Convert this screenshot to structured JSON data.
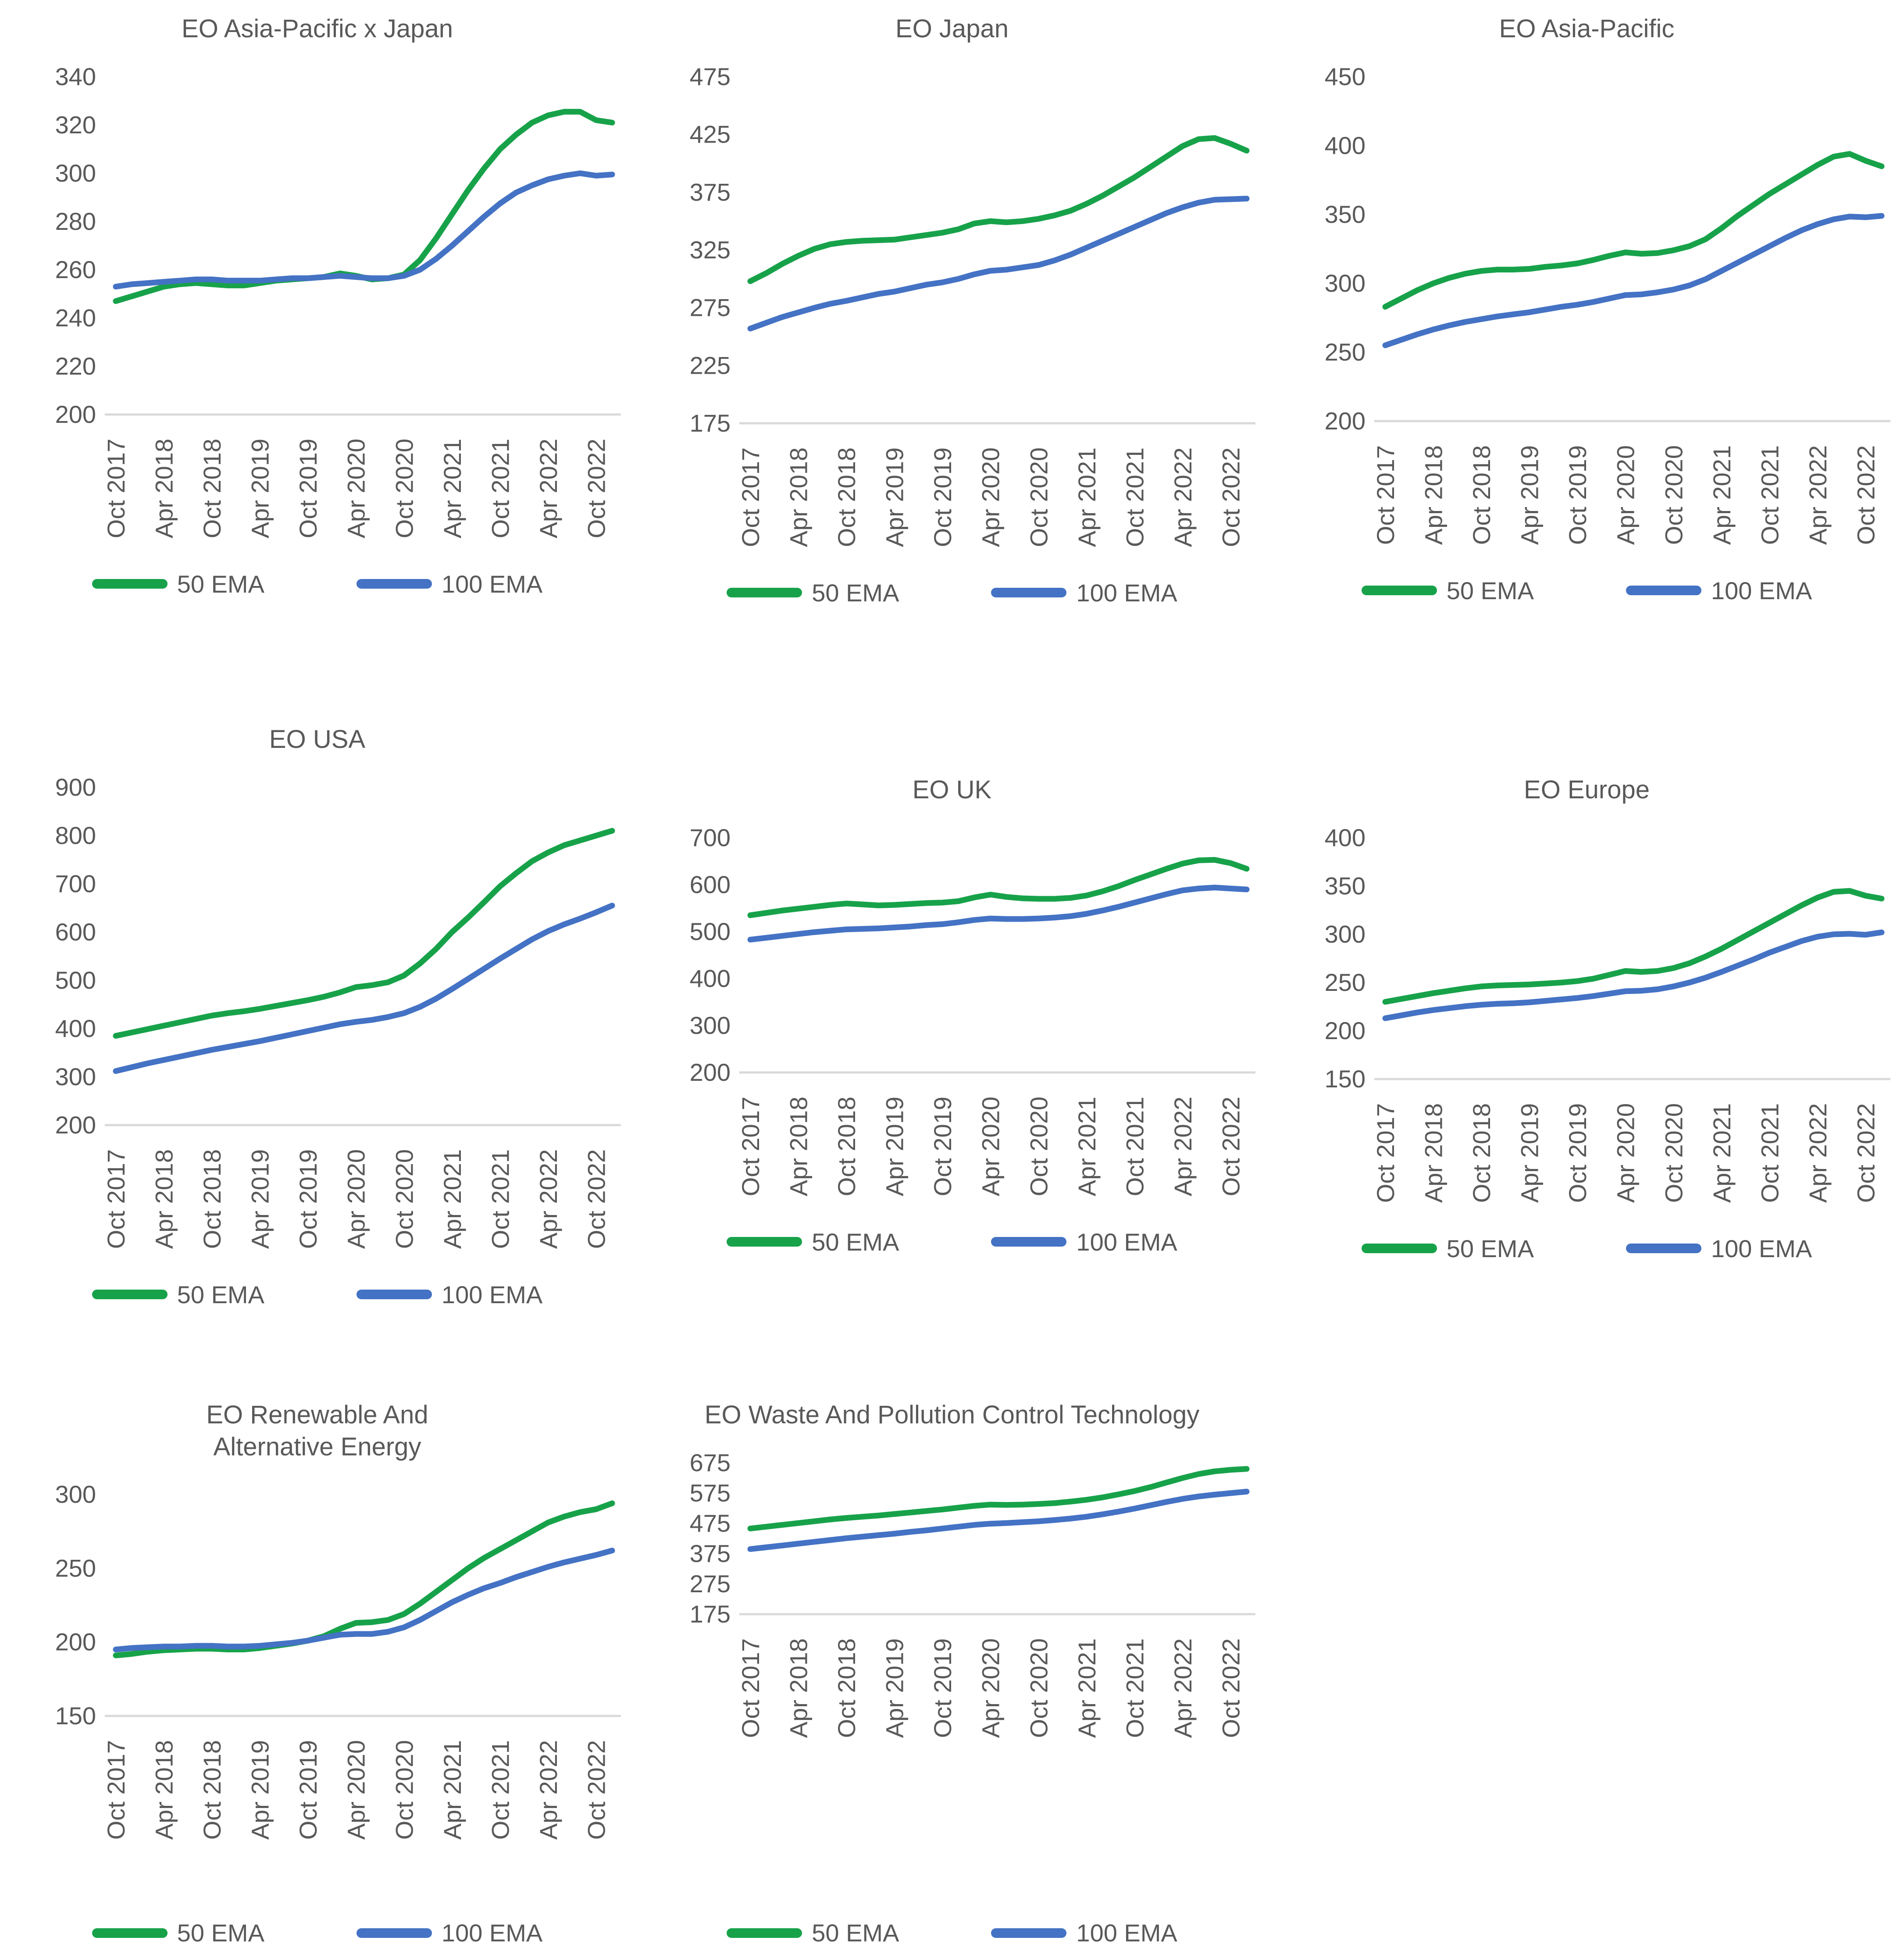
{
  "colors": {
    "ema50": "#17A24A",
    "ema100": "#4472C4",
    "text": "#595959",
    "baseline": "#D9D9D9"
  },
  "x_axis": {
    "tick_labels": [
      "Oct 2017",
      "Apr 2018",
      "Oct 2018",
      "Apr 2019",
      "Oct 2019",
      "Apr 2020",
      "Oct 2020",
      "Apr 2021",
      "Oct 2021",
      "Apr 2022",
      "Oct 2022"
    ],
    "points_per_tick": 3
  },
  "chart_data": [
    {
      "type": "line",
      "title": "EO Asia-Pacific x Japan",
      "ylim": [
        200,
        340
      ],
      "ytick_step": 20,
      "y_ticks": [
        200,
        220,
        240,
        260,
        280,
        300,
        320,
        340
      ],
      "gridlines": "baseline-only",
      "legend_position": "bottom",
      "series": [
        {
          "name": "50 EMA",
          "values": [
            247,
            249,
            251,
            253,
            254,
            254.5,
            254,
            253.5,
            253.5,
            254.5,
            255.5,
            256,
            256.5,
            257,
            258.5,
            257.5,
            256,
            256.5,
            258,
            264,
            273,
            283,
            293,
            302,
            310,
            316,
            321,
            324,
            325.5,
            325.5,
            322,
            321
          ]
        },
        {
          "name": "100 EMA",
          "values": [
            253,
            254,
            254.5,
            255,
            255.5,
            256,
            256,
            255.5,
            255.5,
            255.5,
            256,
            256.5,
            256.5,
            257,
            257.5,
            257,
            256.5,
            256.5,
            257.5,
            260,
            264.5,
            270,
            276,
            282,
            287.5,
            292,
            295,
            297.5,
            299,
            300,
            299,
            299.5
          ]
        }
      ]
    },
    {
      "type": "line",
      "title": "EO Japan",
      "ylim": [
        175,
        475
      ],
      "ytick_step": 50,
      "y_ticks": [
        175,
        225,
        275,
        325,
        375,
        425,
        475
      ],
      "gridlines": "baseline-only",
      "legend_position": "bottom",
      "series": [
        {
          "name": "50 EMA",
          "values": [
            298,
            305,
            313,
            320,
            326,
            330,
            332,
            333,
            333.5,
            334,
            336,
            338,
            340,
            343,
            348,
            350,
            349,
            350,
            352,
            355,
            359,
            365,
            372,
            380,
            388,
            397,
            406,
            415,
            421,
            422,
            417,
            411
          ]
        },
        {
          "name": "100 EMA",
          "values": [
            257,
            262,
            267,
            271,
            275,
            278.5,
            281,
            284,
            287,
            289,
            292,
            295,
            297,
            300,
            304,
            307,
            308,
            310,
            312,
            316,
            321,
            327,
            333,
            339,
            345,
            351,
            357,
            362,
            366,
            368.5,
            369,
            369.5
          ]
        }
      ]
    },
    {
      "type": "line",
      "title": "EO Asia-Pacific",
      "ylim": [
        200,
        450
      ],
      "ytick_step": 50,
      "y_ticks": [
        200,
        250,
        300,
        350,
        400,
        450
      ],
      "gridlines": "baseline-only",
      "legend_position": "bottom",
      "series": [
        {
          "name": "50 EMA",
          "values": [
            283,
            289,
            295,
            300,
            304,
            307,
            309,
            310,
            310,
            310.5,
            312,
            313,
            314.5,
            317,
            320,
            322.5,
            321.5,
            322,
            324,
            327,
            332,
            340,
            349,
            357,
            365,
            372,
            379,
            386,
            392,
            394,
            389,
            385
          ]
        },
        {
          "name": "100 EMA",
          "values": [
            255,
            259,
            263,
            266.5,
            269.5,
            272,
            274,
            276,
            277.5,
            279,
            281,
            283,
            284.5,
            286.5,
            289,
            291.5,
            292,
            293.5,
            295.5,
            298.5,
            303,
            309,
            315,
            321,
            327,
            333,
            338.5,
            343,
            346.5,
            348.5,
            348,
            349
          ]
        }
      ]
    },
    {
      "type": "line",
      "title": "EO USA",
      "ylim": [
        200,
        900
      ],
      "ytick_step": 100,
      "y_ticks": [
        200,
        300,
        400,
        500,
        600,
        700,
        800,
        900
      ],
      "gridlines": "baseline-only",
      "legend_position": "bottom",
      "series": [
        {
          "name": "50 EMA",
          "values": [
            385,
            392,
            399,
            406,
            413,
            420,
            427,
            432,
            436,
            441,
            447,
            453,
            459,
            466,
            475,
            486,
            490,
            496,
            510,
            535,
            565,
            600,
            630,
            662,
            695,
            722,
            747,
            765,
            780,
            790,
            800,
            810
          ]
        },
        {
          "name": "100 EMA",
          "values": [
            312,
            320,
            328,
            335,
            342,
            349,
            356,
            362,
            368,
            374,
            381,
            388,
            395,
            402,
            409,
            414,
            418,
            424,
            432,
            445,
            462,
            482,
            503,
            524,
            545,
            565,
            585,
            602,
            616,
            628,
            641,
            655
          ]
        }
      ]
    },
    {
      "type": "line",
      "title": "EO UK",
      "ylim": [
        200,
        700
      ],
      "ytick_step": 100,
      "y_ticks": [
        200,
        300,
        400,
        500,
        600,
        700
      ],
      "gridlines": "baseline-only",
      "legend_position": "bottom",
      "series": [
        {
          "name": "50 EMA",
          "values": [
            535,
            540,
            545,
            549,
            553,
            557,
            560,
            558,
            556,
            557,
            559,
            561,
            562,
            565,
            573,
            579,
            574,
            571,
            570,
            570,
            572,
            577,
            586,
            597,
            610,
            622,
            634,
            645,
            652,
            653,
            646,
            634
          ]
        },
        {
          "name": "100 EMA",
          "values": [
            483,
            487,
            491,
            495,
            499,
            502,
            505,
            506,
            507,
            509,
            511,
            514,
            516,
            520,
            525,
            528,
            527,
            527,
            528,
            530,
            533,
            538,
            545,
            553,
            562,
            571,
            580,
            588,
            592,
            594,
            592,
            590
          ]
        }
      ]
    },
    {
      "type": "line",
      "title": "EO Europe",
      "ylim": [
        150,
        400
      ],
      "ytick_step": 50,
      "y_ticks": [
        150,
        200,
        250,
        300,
        350,
        400
      ],
      "gridlines": "baseline-only",
      "legend_position": "bottom",
      "series": [
        {
          "name": "50 EMA",
          "values": [
            230,
            233,
            236,
            239,
            241.5,
            244,
            246,
            247,
            247.5,
            248,
            249,
            250,
            251.5,
            254,
            258,
            262,
            261,
            262,
            265,
            270,
            277,
            285,
            294,
            303,
            312,
            321,
            330,
            338,
            344,
            345,
            340,
            337
          ]
        },
        {
          "name": "100 EMA",
          "values": [
            213,
            216,
            219,
            221.5,
            223.5,
            225.5,
            227,
            228,
            228.5,
            229.5,
            231,
            232.5,
            234,
            236,
            238.5,
            241,
            241.5,
            243,
            246,
            250,
            255,
            261,
            267.5,
            274,
            281,
            287,
            293,
            297.5,
            300,
            300.5,
            299.5,
            302
          ]
        }
      ]
    },
    {
      "type": "line",
      "title": "EO Renewable And Alternative Energy",
      "ylim": [
        150,
        300
      ],
      "ytick_step": 50,
      "y_ticks": [
        150,
        200,
        250,
        300
      ],
      "gridlines": "baseline-only",
      "legend_position": "bottom",
      "series": [
        {
          "name": "50 EMA",
          "values": [
            191,
            192,
            193.5,
            194.5,
            195,
            195.5,
            195.5,
            195,
            195,
            196,
            197.5,
            199,
            201,
            204,
            209,
            213,
            213.5,
            215,
            219,
            226,
            234,
            242,
            250,
            257,
            263,
            269,
            275,
            281,
            285,
            288,
            290,
            294
          ]
        },
        {
          "name": "100 EMA",
          "values": [
            195,
            196,
            196.5,
            197,
            197,
            197.5,
            197.5,
            197,
            197,
            197.5,
            198.5,
            199.5,
            201,
            203,
            205,
            205.5,
            205.5,
            207,
            210,
            215,
            221,
            227,
            232,
            236.5,
            240,
            244,
            247.5,
            251,
            254,
            256.5,
            259,
            262
          ]
        }
      ]
    },
    {
      "type": "line",
      "title": "EO Waste And Pollution Control Technology",
      "ylim": [
        175,
        675
      ],
      "ytick_step": 100,
      "y_ticks": [
        175,
        275,
        375,
        475,
        575,
        675
      ],
      "gridlines": "baseline-only",
      "legend_position": "bottom",
      "series": [
        {
          "name": "50 EMA",
          "values": [
            458,
            464,
            470,
            476,
            482,
            488,
            493,
            497,
            501,
            506,
            511,
            516,
            521,
            527,
            533,
            537,
            536,
            537,
            539,
            542,
            547,
            553,
            561,
            571,
            582,
            595,
            610,
            625,
            638,
            647,
            652,
            655
          ]
        },
        {
          "name": "100 EMA",
          "values": [
            390,
            396,
            402,
            408,
            414,
            420,
            426,
            431,
            436,
            441,
            447,
            452,
            458,
            464,
            470,
            474,
            476,
            479,
            482,
            486,
            491,
            497,
            505,
            514,
            524,
            535,
            546,
            556,
            564,
            570,
            575,
            580
          ]
        }
      ]
    }
  ]
}
